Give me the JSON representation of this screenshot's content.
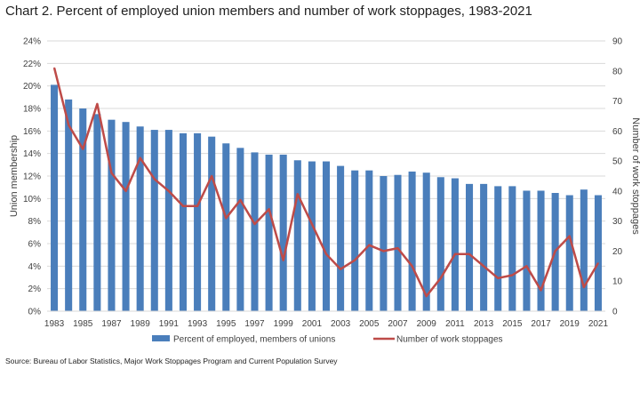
{
  "title": "Chart 2. Percent of employed union members and number of work stoppages, 1983-2021",
  "source": "Source: Bureau of Labor Statistics, Major Work Stoppages Program and Current Population Survey",
  "colors": {
    "bars": "#4a7ebb",
    "line": "#be4b48",
    "grid": "#d9d9d9",
    "text": "#404040"
  },
  "chart_data": {
    "type": "bar",
    "combo": "bar + line (secondary axis)",
    "title": "Chart 2. Percent of employed union members and number of work stoppages, 1983-2021",
    "x": [
      1983,
      1984,
      1985,
      1986,
      1987,
      1988,
      1989,
      1990,
      1991,
      1992,
      1993,
      1994,
      1995,
      1996,
      1997,
      1998,
      1999,
      2000,
      2001,
      2002,
      2003,
      2004,
      2005,
      2006,
      2007,
      2008,
      2009,
      2010,
      2011,
      2012,
      2013,
      2014,
      2015,
      2016,
      2017,
      2018,
      2019,
      2020,
      2021
    ],
    "x_tick_labels": [
      "1983",
      "1985",
      "1987",
      "1989",
      "1991",
      "1993",
      "1995",
      "1997",
      "1999",
      "2001",
      "2003",
      "2005",
      "2007",
      "2009",
      "2011",
      "2013",
      "2015",
      "2017",
      "2019",
      "2021"
    ],
    "ylabel": "Union membership",
    "y2label": "Number of work stoppages",
    "ylim": [
      0,
      24
    ],
    "y_tick_labels": [
      "0%",
      "2%",
      "4%",
      "6%",
      "8%",
      "10%",
      "12%",
      "14%",
      "16%",
      "18%",
      "20%",
      "22%",
      "24%"
    ],
    "y2lim": [
      0,
      90
    ],
    "y2_tick_labels": [
      "0",
      "10",
      "20",
      "30",
      "40",
      "50",
      "60",
      "70",
      "80",
      "90"
    ],
    "grid": true,
    "legend_position": "bottom",
    "series": [
      {
        "name": "Percent of employed, members of unions",
        "kind": "bar",
        "axis": "left",
        "values": [
          20.1,
          18.8,
          18.0,
          17.5,
          17.0,
          16.8,
          16.4,
          16.1,
          16.1,
          15.8,
          15.8,
          15.5,
          14.9,
          14.5,
          14.1,
          13.9,
          13.9,
          13.4,
          13.3,
          13.3,
          12.9,
          12.5,
          12.5,
          12.0,
          12.1,
          12.4,
          12.3,
          11.9,
          11.8,
          11.3,
          11.3,
          11.1,
          11.1,
          10.7,
          10.7,
          10.5,
          10.3,
          10.8,
          10.3
        ]
      },
      {
        "name": "Number of work stoppages",
        "kind": "line",
        "axis": "right",
        "values": [
          81,
          62,
          54,
          69,
          46,
          40,
          51,
          44,
          40,
          35,
          35,
          45,
          31,
          37,
          29,
          34,
          17,
          39,
          29,
          19,
          14,
          17,
          22,
          20,
          21,
          15,
          5,
          11,
          19,
          19,
          15,
          11,
          12,
          15,
          7,
          20,
          25,
          8,
          16
        ]
      }
    ]
  }
}
